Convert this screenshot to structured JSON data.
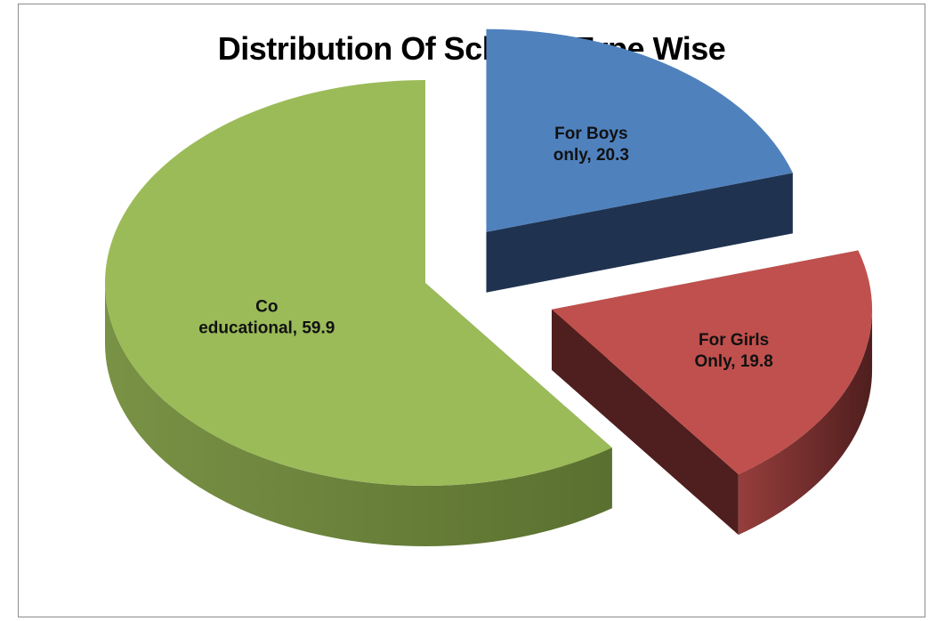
{
  "chart_data": {
    "type": "pie",
    "title": "Distribution Of Schools Type Wise",
    "three_d": true,
    "exploded": true,
    "slices": [
      {
        "name": "For Boys only",
        "value": 20.3,
        "color": "#4f81bd",
        "side_color": "#1f3350",
        "label_lines": [
          "For Boys",
          "only, 20.3"
        ]
      },
      {
        "name": "For Girls Only",
        "value": 19.8,
        "color": "#c0504d",
        "side_color": "#4f1e1e",
        "label_lines": [
          "For Girls",
          "Only, 19.8"
        ]
      },
      {
        "name": "Co educational",
        "value": 59.9,
        "color": "#9bbb59",
        "side_color": "#5a7030",
        "label_lines": [
          "Co",
          "educational, 59.9"
        ]
      }
    ]
  }
}
